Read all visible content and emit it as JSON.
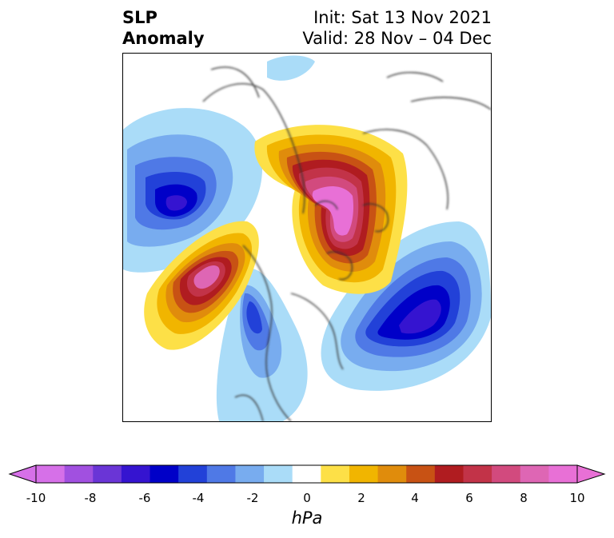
{
  "title": {
    "left_line1": "SLP",
    "left_line2": "Anomaly",
    "right_line1": "Init: Sat 13 Nov 2021",
    "right_line2": "Valid: 28 Nov – 04 Dec"
  },
  "colorbar": {
    "unit": "hPa",
    "levels": [
      -10,
      -9,
      -8,
      -7,
      -6,
      -5,
      -4,
      -3,
      -2,
      -1,
      1,
      2,
      3,
      4,
      5,
      6,
      7,
      8,
      9,
      10
    ],
    "tick_labels": [
      "-10",
      "-8",
      "-6",
      "-4",
      "-2",
      "0",
      "2",
      "4",
      "6",
      "8",
      "10"
    ],
    "colors": [
      "#d670e8",
      "#a150e0",
      "#6a35d6",
      "#3514d0",
      "#0000c8",
      "#2241d8",
      "#4f79e6",
      "#78acef",
      "#aadcf8",
      "#ffffff",
      "#fde047",
      "#f1b500",
      "#e08c0c",
      "#c85214",
      "#b01c20",
      "#c23348",
      "#d24a7e",
      "#de66b4",
      "#e870d6"
    ],
    "extend": "both"
  }
}
